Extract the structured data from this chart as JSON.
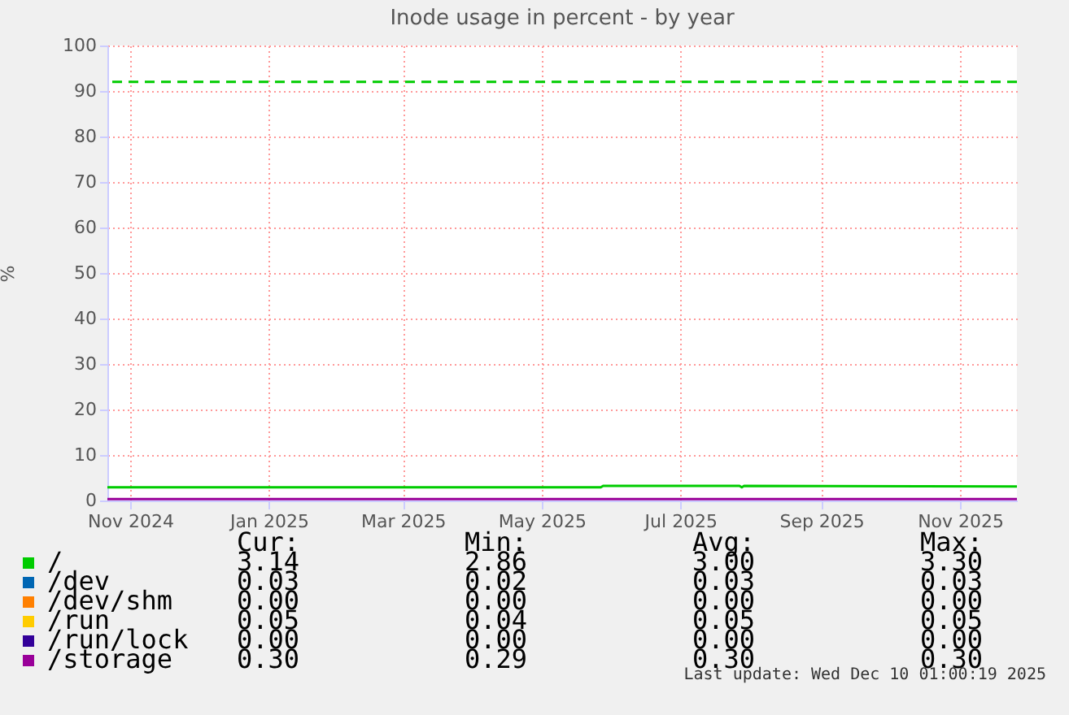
{
  "chart_data": {
    "type": "line",
    "title": "Inode usage in percent - by year",
    "ylabel": "%",
    "x": [
      "2024-11-05",
      "2025-12-10"
    ],
    "xlim": [
      "2024-11-05",
      "2025-12-10"
    ],
    "xticks": [
      {
        "value": "2024-11-15",
        "label": "Nov 2024"
      },
      {
        "value": "2025-01-15",
        "label": "Jan 2025"
      },
      {
        "value": "2025-03-15",
        "label": "Mar 2025"
      },
      {
        "value": "2025-05-15",
        "label": "May 2025"
      },
      {
        "value": "2025-07-15",
        "label": "Jul 2025"
      },
      {
        "value": "2025-09-15",
        "label": "Sep 2025"
      },
      {
        "value": "2025-11-15",
        "label": "Nov 2025"
      }
    ],
    "ylim": [
      0,
      100
    ],
    "yticks": [
      0,
      10,
      20,
      30,
      40,
      50,
      60,
      70,
      80,
      90,
      100
    ],
    "grid": true,
    "legend": "bottom",
    "series": [
      {
        "name": "/",
        "color": "#00cc00",
        "x": [
          "2024-11-05",
          "2025-06-10",
          "2025-06-11",
          "2025-08-10",
          "2025-08-11",
          "2025-08-12",
          "2025-12-10"
        ],
        "values": [
          2.9,
          2.9,
          3.2,
          3.2,
          2.9,
          3.2,
          3.1
        ]
      },
      {
        "name": "/dev",
        "color": "#0066b3",
        "values": [
          null,
          null
        ]
      },
      {
        "name": "/dev/shm",
        "color": "#ff8000",
        "values": [
          null,
          null
        ]
      },
      {
        "name": "/run",
        "color": "#ffcc00",
        "values": [
          null,
          null
        ]
      },
      {
        "name": "/run/lock",
        "color": "#330099",
        "values": [
          null,
          null
        ]
      },
      {
        "name": "/storage",
        "color": "#990099",
        "values": [
          0.3,
          0.3
        ]
      }
    ],
    "ref_lines": [
      {
        "axis": "y",
        "value": 92,
        "color": "#00cc00",
        "line_style": "dashed"
      }
    ],
    "annotations": [
      "Cur:",
      "Min:",
      "Avg:",
      "Max:",
      "3.14",
      "2.86",
      "3.00",
      "3.30",
      "0.03",
      "0.02",
      "0.03",
      "0.03",
      "0.00",
      "0.00",
      "0.00",
      "0.00",
      "0.05",
      "0.04",
      "0.05",
      "0.05",
      "0.00",
      "0.00",
      "0.00",
      "0.00",
      "0.30",
      "0.29",
      "0.30",
      "0.30",
      "Last update: Wed Dec 10 01:00:19 2025"
    ]
  }
}
